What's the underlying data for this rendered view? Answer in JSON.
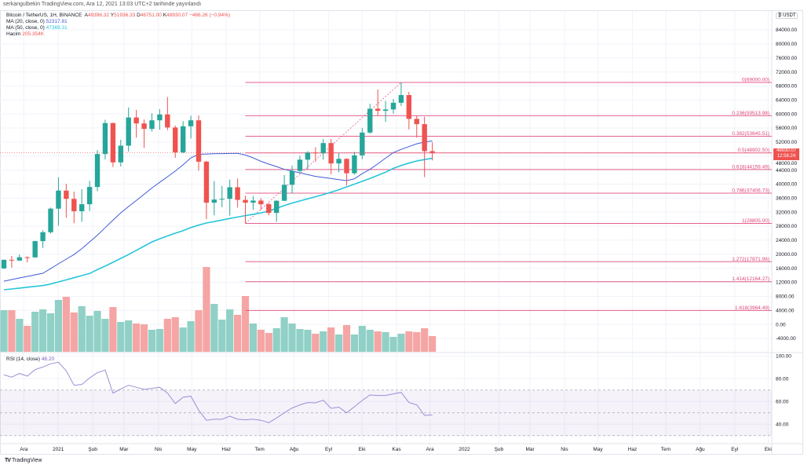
{
  "header": {
    "published": "serkangulbekin TradingView.com, Ara 12, 2021 13:03 UTC+2 tarihinde yayınlandı"
  },
  "legend": {
    "symbol": "Bitcoin / TetherUS, 1H, BINANCE",
    "open_prefix": "A",
    "open": "49396.32",
    "high_prefix": "Y",
    "high": "51936.33",
    "low_prefix": "D",
    "low": "46751.00",
    "close_prefix": "K",
    "close": "48930.07",
    "change": "−466.26 (−0.94%)",
    "ma20_label": "MA (20, close, 0)",
    "ma20_value": "52317.81",
    "ma50_label": "MA (50, close, 0)",
    "ma50_value": "47369.31",
    "volume_label": "Hacim",
    "volume_value": "205.354K"
  },
  "price_axis": {
    "currency": "USDT",
    "ticks": [
      "84000.00",
      "80000.00",
      "76000.00",
      "72000.00",
      "68000.00",
      "64000.00",
      "60000.00",
      "56000.00",
      "52000.00",
      "48000.00",
      "44000.00",
      "40000.00",
      "36000.00",
      "32000.00",
      "28000.00",
      "24000.00",
      "20000.00",
      "16000.00",
      "12000.00",
      "8000.00",
      "4000.00",
      "0.00",
      "-4000.00"
    ],
    "last_price": "48930.07",
    "countdown": "12:56:24"
  },
  "rsi": {
    "label": "RSI (14, close)",
    "value": "48.20",
    "ticks": [
      "100.00",
      "80.00",
      "60.00",
      "40.00"
    ]
  },
  "footer": {
    "brand": "TradingView"
  },
  "chart_data": {
    "type": "candlestick",
    "ylim": [
      -4000,
      86000
    ],
    "colors": {
      "up": "#26a69a",
      "down": "#ef5350",
      "vol_up": "#90d0c6",
      "vol_down": "#f5a5a4",
      "ma20": "#3f5bd8",
      "ma50": "#26c6da",
      "rsi": "#7e57c2",
      "fib": "#e0457b"
    },
    "dates": [
      "2020-11-16",
      "2020-11-23",
      "2020-11-30",
      "2020-12-07",
      "2020-12-14",
      "2020-12-21",
      "2020-12-28",
      "2021-01-04",
      "2021-01-11",
      "2021-01-18",
      "2021-01-25",
      "2021-02-01",
      "2021-02-08",
      "2021-02-15",
      "2021-02-22",
      "2021-03-01",
      "2021-03-08",
      "2021-03-15",
      "2021-03-22",
      "2021-03-29",
      "2021-04-05",
      "2021-04-12",
      "2021-04-19",
      "2021-04-26",
      "2021-05-03",
      "2021-05-10",
      "2021-05-17",
      "2021-05-24",
      "2021-05-31",
      "2021-06-07",
      "2021-06-14",
      "2021-06-21",
      "2021-06-28",
      "2021-07-05",
      "2021-07-12",
      "2021-07-19",
      "2021-07-26",
      "2021-08-02",
      "2021-08-09",
      "2021-08-16",
      "2021-08-23",
      "2021-08-30",
      "2021-09-06",
      "2021-09-13",
      "2021-09-20",
      "2021-09-27",
      "2021-10-04",
      "2021-10-11",
      "2021-10-18",
      "2021-10-25",
      "2021-11-01",
      "2021-11-08",
      "2021-11-15",
      "2021-11-22",
      "2021-11-29",
      "2021-12-06"
    ],
    "candles_ohlc": [
      [
        15957,
        18476,
        15793,
        18414
      ],
      [
        18414,
        19500,
        16200,
        18185
      ],
      [
        18185,
        19915,
        18100,
        19147
      ],
      [
        19147,
        19420,
        17650,
        19100
      ],
      [
        19100,
        23800,
        19000,
        23738
      ],
      [
        23738,
        26800,
        21800,
        26281
      ],
      [
        26281,
        33300,
        25900,
        33000
      ],
      [
        33000,
        41950,
        28130,
        38150
      ],
      [
        38150,
        40100,
        30420,
        35791
      ],
      [
        35791,
        37850,
        28850,
        32259
      ],
      [
        32259,
        38530,
        29240,
        34262
      ],
      [
        34262,
        40955,
        32296,
        39186
      ],
      [
        39186,
        49707,
        37988,
        48577
      ],
      [
        48577,
        58352,
        47000,
        57408
      ],
      [
        57408,
        57520,
        44892,
        46200
      ],
      [
        46200,
        52640,
        45000,
        50971
      ],
      [
        50971,
        61844,
        49300,
        59000
      ],
      [
        59000,
        61180,
        53271,
        57300
      ],
      [
        57300,
        58400,
        50313,
        55750
      ],
      [
        55750,
        60200,
        55000,
        58200
      ],
      [
        58200,
        61400,
        55500,
        59870
      ],
      [
        59870,
        64854,
        55400,
        56150
      ],
      [
        56150,
        56700,
        47500,
        49050
      ],
      [
        49050,
        57950,
        48800,
        56500
      ],
      [
        56500,
        59500,
        53000,
        58200
      ],
      [
        58200,
        59600,
        43800,
        46400
      ],
      [
        46400,
        46650,
        30000,
        34700
      ],
      [
        34700,
        40850,
        31100,
        35600
      ],
      [
        35600,
        39500,
        33400,
        35800
      ],
      [
        35800,
        41300,
        31000,
        39100
      ],
      [
        39100,
        41600,
        33300,
        35500
      ],
      [
        35500,
        36700,
        28805,
        34700
      ],
      [
        34700,
        36600,
        32700,
        35300
      ],
      [
        35300,
        35950,
        32700,
        34260
      ],
      [
        34260,
        34650,
        31100,
        31780
      ],
      [
        31780,
        35400,
        29280,
        35240
      ],
      [
        35240,
        42600,
        35200,
        39800
      ],
      [
        39800,
        45300,
        37330,
        43750
      ],
      [
        43750,
        48100,
        43300,
        46970
      ],
      [
        46970,
        49400,
        44200,
        49000
      ],
      [
        49000,
        50500,
        46400,
        48800
      ],
      [
        48800,
        52900,
        47000,
        51700
      ],
      [
        51700,
        52900,
        42830,
        45900
      ],
      [
        45900,
        48800,
        43350,
        47200
      ],
      [
        47200,
        47400,
        39600,
        43100
      ],
      [
        43100,
        49200,
        42700,
        48200
      ],
      [
        48200,
        56000,
        47100,
        54700
      ],
      [
        54700,
        62900,
        54400,
        61500
      ],
      [
        61500,
        67000,
        59500,
        60900
      ],
      [
        60900,
        63700,
        57800,
        61300
      ],
      [
        61300,
        64300,
        60100,
        63200
      ],
      [
        63200,
        69000,
        62300,
        65400
      ],
      [
        65400,
        66300,
        55600,
        58600
      ],
      [
        58600,
        59500,
        53250,
        57100
      ],
      [
        57100,
        59200,
        42000,
        49396.32
      ],
      [
        49396.32,
        51936.33,
        46751,
        48930.07
      ]
    ],
    "volume_k": [
      544,
      544,
      431,
      339,
      524,
      555,
      503,
      678,
      719,
      514,
      596,
      472,
      534,
      431,
      585,
      390,
      411,
      370,
      359,
      288,
      298,
      431,
      452,
      318,
      400,
      544,
      1109,
      626,
      421,
      555,
      483,
      729,
      370,
      288,
      246,
      308,
      452,
      370,
      298,
      288,
      236,
      267,
      318,
      226,
      349,
      226,
      339,
      288,
      267,
      257,
      195,
      236,
      267,
      257,
      308,
      205.354
    ],
    "ma20": [
      12320,
      12770,
      13220,
      13670,
      14120,
      14570,
      15900,
      17250,
      18600,
      19900,
      21600,
      23500,
      25400,
      27600,
      29700,
      31800,
      33600,
      35300,
      37100,
      38900,
      40500,
      42100,
      43700,
      45500,
      47500,
      48500,
      48600,
      48650,
      48700,
      48750,
      48800,
      48300,
      47500,
      46500,
      45700,
      45000,
      44200,
      43700,
      43200,
      42700,
      42200,
      41900,
      41600,
      41300,
      41000,
      41500,
      43000,
      44200,
      45800,
      47400,
      49000,
      49900,
      50700,
      51500,
      52000,
      52317.81
    ],
    "ma50": [
      9860,
      10100,
      10340,
      10580,
      10820,
      11060,
      11500,
      12100,
      12700,
      13300,
      13900,
      14500,
      15600,
      16600,
      17700,
      18800,
      19900,
      21100,
      22300,
      23500,
      24400,
      25200,
      26000,
      26700,
      27600,
      28300,
      28900,
      29300,
      29750,
      30200,
      30600,
      31000,
      31400,
      31800,
      32300,
      33100,
      33900,
      34600,
      35200,
      35800,
      36400,
      37000,
      37700,
      38400,
      39200,
      40000,
      40800,
      41600,
      42500,
      43400,
      44500,
      45300,
      46000,
      46600,
      47000,
      47369.31
    ],
    "rsi_values": [
      83.4,
      81.4,
      84.6,
      82.3,
      88,
      90.3,
      93.1,
      94.5,
      86.9,
      74.3,
      75,
      80.7,
      85.3,
      87.6,
      67.4,
      71,
      74.3,
      72.5,
      70.6,
      71.5,
      72.5,
      67.4,
      58.2,
      63.7,
      64.6,
      52.4,
      43.5,
      44.4,
      44.4,
      47.1,
      44.4,
      43.9,
      44.4,
      43.5,
      41.4,
      45.5,
      50.1,
      54.3,
      57,
      59.1,
      58.8,
      61.1,
      54,
      55,
      50.1,
      55.4,
      60.9,
      65.7,
      65.3,
      65.3,
      66.7,
      68,
      59.1,
      57,
      47.8,
      48.2
    ],
    "rsi_levels": [
      70,
      50,
      30
    ],
    "rsi_ylim": [
      20,
      100
    ],
    "fib": {
      "start_date": "2021-06-21",
      "end_date": "2021-11-08",
      "start_price": 28805,
      "end_price": 69000,
      "levels": [
        {
          "ratio": 0,
          "price": 69000.0,
          "label": "0(69000.00)"
        },
        {
          "ratio": 0.236,
          "price": 59513.98,
          "label": "0.236(59513.98)"
        },
        {
          "ratio": 0.382,
          "price": 53645.51,
          "label": "0.382(53645.51)"
        },
        {
          "ratio": 0.5,
          "price": 48902.5,
          "label": "0.5(48902.50)"
        },
        {
          "ratio": 0.618,
          "price": 44159.49,
          "label": "0.618(44159.49)"
        },
        {
          "ratio": 0.786,
          "price": 37406.73,
          "label": "0.786(37406.73)"
        },
        {
          "ratio": 1,
          "price": 28805.0,
          "label": "1(28805.00)"
        },
        {
          "ratio": 1.272,
          "price": 17871.96,
          "label": "1.272(17871.96)"
        },
        {
          "ratio": 1.414,
          "price": 12164.27,
          "label": "1.414(12164.27)"
        },
        {
          "ratio": 1.618,
          "price": 3964.49,
          "label": "1.618(3964.49)"
        }
      ]
    },
    "x_ticks": [
      {
        "label": "Ara",
        "date": "2020-12-01"
      },
      {
        "label": "2021",
        "date": "2021-01-01"
      },
      {
        "label": "Şub",
        "date": "2021-02-01"
      },
      {
        "label": "Mar",
        "date": "2021-03-01"
      },
      {
        "label": "Nis",
        "date": "2021-04-01"
      },
      {
        "label": "May",
        "date": "2021-05-01"
      },
      {
        "label": "Haz",
        "date": "2021-06-01"
      },
      {
        "label": "Tem",
        "date": "2021-07-01"
      },
      {
        "label": "Ağu",
        "date": "2021-08-01"
      },
      {
        "label": "Eyl",
        "date": "2021-09-01"
      },
      {
        "label": "Eki",
        "date": "2021-10-01"
      },
      {
        "label": "Kas",
        "date": "2021-11-01"
      },
      {
        "label": "Ara",
        "date": "2021-12-01"
      },
      {
        "label": "2022",
        "date": "2022-01-01"
      },
      {
        "label": "Şub",
        "date": "2022-02-01"
      },
      {
        "label": "Mar",
        "date": "2022-03-01"
      },
      {
        "label": "Nis",
        "date": "2022-04-01"
      },
      {
        "label": "May",
        "date": "2022-05-01"
      },
      {
        "label": "Haz",
        "date": "2022-06-01"
      },
      {
        "label": "Tem",
        "date": "2022-07-01"
      },
      {
        "label": "Ağu",
        "date": "2022-08-01"
      },
      {
        "label": "Eyl",
        "date": "2022-09-01"
      },
      {
        "label": "Eki",
        "date": "2022-10-01"
      }
    ]
  }
}
